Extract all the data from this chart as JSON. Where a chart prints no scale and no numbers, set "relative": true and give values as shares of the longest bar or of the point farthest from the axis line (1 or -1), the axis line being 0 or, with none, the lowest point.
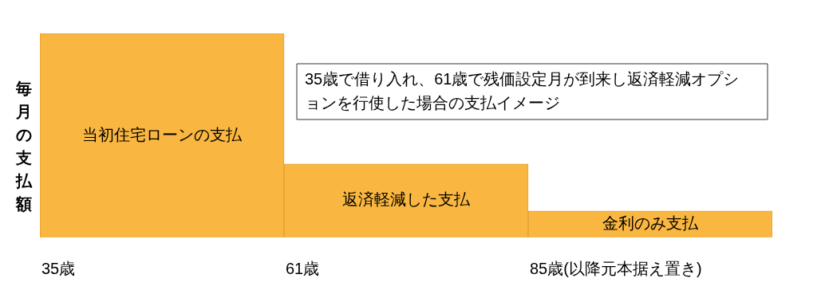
{
  "chart_data": {
    "type": "bar",
    "relative": true,
    "ylabel": "毎月の支払額",
    "categories": [
      "35歳",
      "61歳",
      "85歳(以降元本据え置き)"
    ],
    "values": [
      1,
      0.36,
      0.13
    ],
    "color": "#f9b640",
    "annotations": [
      "35歳で借り入れ、61歳で残価設定月が到来し返済軽減オプションを行使した場合の支払イメージ",
      "当初住宅ローンの支払",
      "返済軽減した支払",
      "金利のみ支払"
    ],
    "legend": false
  }
}
